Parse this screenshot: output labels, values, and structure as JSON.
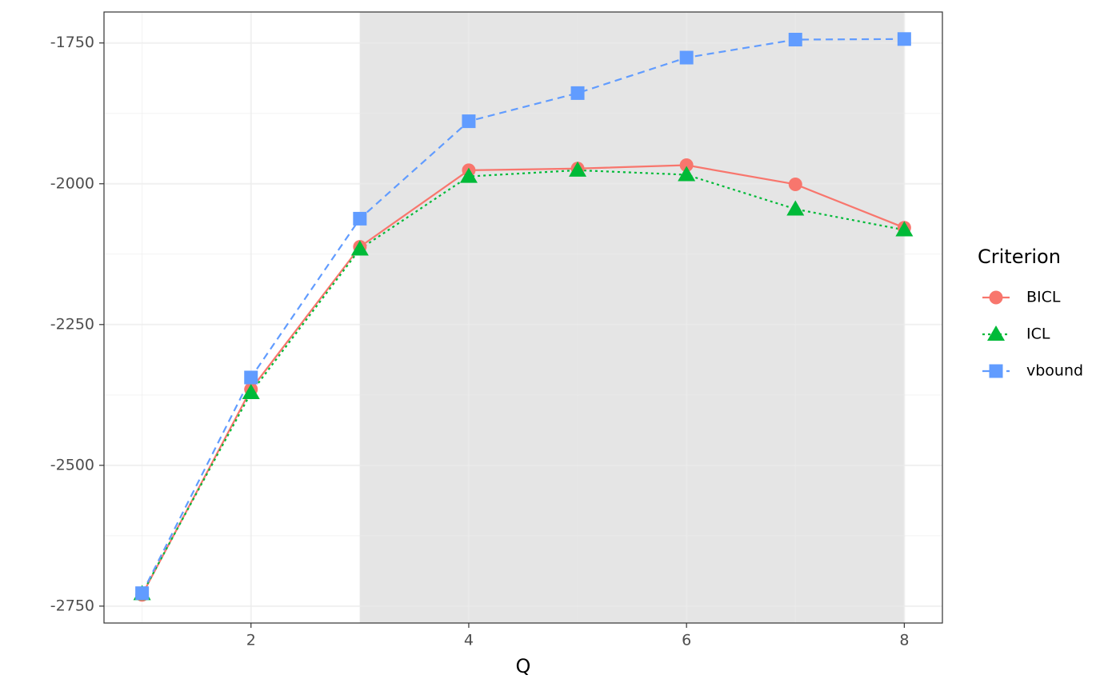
{
  "chart_data": {
    "type": "line",
    "x_label": "Q",
    "x": [
      1,
      2,
      3,
      4,
      5,
      6,
      7,
      8
    ],
    "series": [
      {
        "name": "BICL",
        "color": "#f8766d",
        "linetype": "solid",
        "shape": "circle",
        "values": [
          -2730,
          -2365,
          -2112,
          -1976,
          -1973,
          -1967,
          -2001,
          -2078
        ]
      },
      {
        "name": "ICL",
        "color": "#00ba38",
        "linetype": "dotted",
        "shape": "triangle",
        "values": [
          -2728,
          -2371,
          -2116,
          -1987,
          -1976,
          -1984,
          -2045,
          -2082
        ]
      },
      {
        "name": "vbound",
        "color": "#619cff",
        "linetype": "dashed",
        "shape": "square",
        "values": [
          -2727,
          -2344,
          -2062,
          -1889,
          -1839,
          -1776,
          -1744,
          -1743
        ]
      }
    ],
    "highlight_x": [
      3,
      8
    ],
    "highlight_color": "#e5e5e5",
    "xlim": [
      0.65,
      8.35
    ],
    "xticks": [
      2,
      4,
      6,
      8
    ],
    "ylim": [
      -2780,
      -1695
    ],
    "yticks": [
      -2750,
      -2500,
      -2250,
      -2000,
      -1750
    ],
    "grid": true,
    "legend_title": "Criterion",
    "legend_position": "right"
  }
}
